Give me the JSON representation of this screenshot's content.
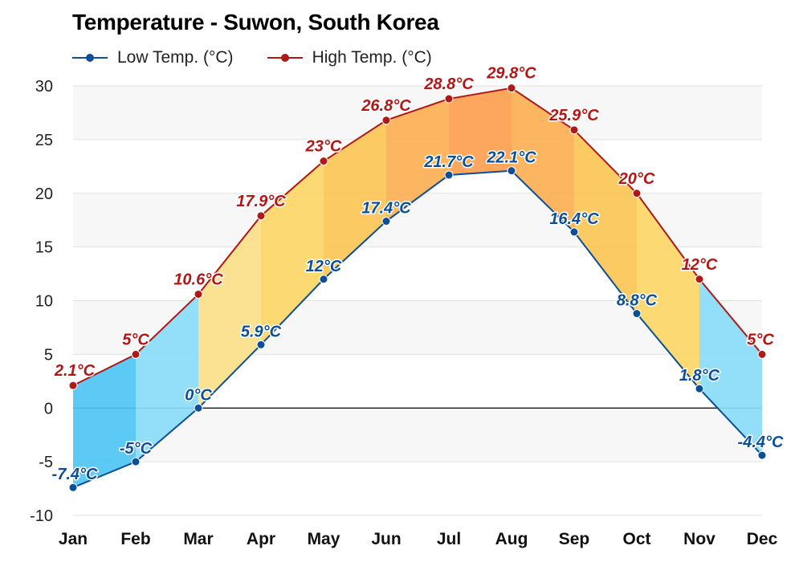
{
  "chart_data": {
    "type": "line",
    "title": "Temperature - Suwon, South Korea",
    "categories": [
      "Jan",
      "Feb",
      "Mar",
      "Apr",
      "May",
      "Jun",
      "Jul",
      "Aug",
      "Sep",
      "Oct",
      "Nov",
      "Dec"
    ],
    "series": [
      {
        "name": "Low Temp. (°C)",
        "color": "#0d4f96",
        "values": [
          -7.4,
          -5,
          0,
          5.9,
          12,
          17.4,
          21.7,
          22.1,
          16.4,
          8.8,
          1.8,
          -4.4
        ],
        "labels": [
          "-7.4°C",
          "-5°C",
          "0°C",
          "5.9°C",
          "12°C",
          "17.4°C",
          "21.7°C",
          "22.1°C",
          "16.4°C",
          "8.8°C",
          "1.8°C",
          "-4.4°C"
        ]
      },
      {
        "name": "High Temp. (°C)",
        "color": "#b01818",
        "values": [
          2.1,
          5,
          10.6,
          17.9,
          23,
          26.8,
          28.8,
          29.8,
          25.9,
          20,
          12,
          5
        ],
        "labels": [
          "2.1°C",
          "5°C",
          "10.6°C",
          "17.9°C",
          "23°C",
          "26.8°C",
          "28.8°C",
          "29.8°C",
          "25.9°C",
          "20°C",
          "12°C",
          "5°C"
        ]
      }
    ],
    "yticks": [
      30,
      25,
      20,
      15,
      10,
      5,
      0,
      -5,
      -10
    ],
    "ylim": [
      -10,
      30
    ],
    "grid": true,
    "legend": "top-left",
    "xlabel": "",
    "ylabel": ""
  }
}
